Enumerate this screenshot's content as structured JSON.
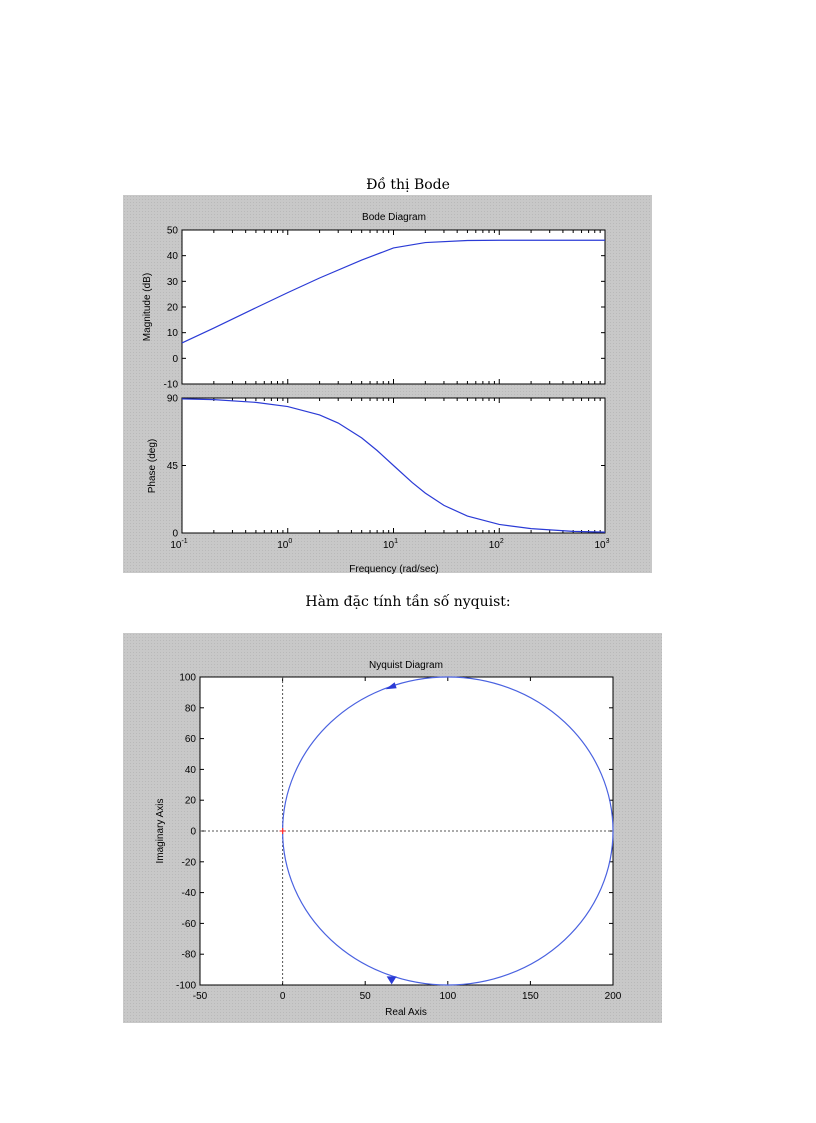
{
  "captions": {
    "bode": "Đồ thị Bode",
    "nyquist": "Hàm đặc tính tần số nyquist:"
  },
  "colors": {
    "curve": "#2b3bd6",
    "nyquist_curve": "#4a62e0",
    "origin_marker": "#ff3030",
    "axis": "#000000",
    "grid_dotted": "#555555",
    "figure_bg": "#c8c8c8",
    "plot_bg": "#ffffff"
  },
  "chart_data": [
    {
      "type": "line",
      "title": "Bode Diagram",
      "xlabel": "Frequency  (rad/sec)",
      "xscale": "log",
      "xlim": [
        0.1,
        1000
      ],
      "x_ticks": [
        {
          "base": "10",
          "exp": "-1"
        },
        {
          "base": "10",
          "exp": "0"
        },
        {
          "base": "10",
          "exp": "1"
        },
        {
          "base": "10",
          "exp": "2"
        },
        {
          "base": "10",
          "exp": "3"
        }
      ],
      "x_tick_values": [
        0.1,
        1,
        10,
        100,
        1000
      ],
      "subplots": [
        {
          "ylabel": "Magnitude (dB)",
          "ylim": [
            -10,
            50
          ],
          "y_ticks": [
            "-10",
            "0",
            "10",
            "20",
            "30",
            "40",
            "50"
          ],
          "y_tick_values": [
            -10,
            0,
            10,
            20,
            30,
            40,
            50
          ],
          "x": [
            0.1,
            0.2,
            0.5,
            1,
            2,
            5,
            10,
            20,
            50,
            100,
            300,
            1000
          ],
          "y": [
            6,
            11.8,
            19.7,
            25.6,
            31.3,
            38.3,
            43.0,
            45.1,
            45.9,
            46.0,
            46.0,
            46.0
          ]
        },
        {
          "ylabel": "Phase (deg)",
          "ylim": [
            0,
            90
          ],
          "y_ticks": [
            "0",
            "45",
            "90"
          ],
          "y_tick_values": [
            0,
            45,
            90
          ],
          "x": [
            0.1,
            0.2,
            0.5,
            1,
            2,
            3,
            5,
            7,
            10,
            15,
            20,
            30,
            50,
            100,
            200,
            500,
            1000
          ],
          "y": [
            89.4,
            88.9,
            87.1,
            84.3,
            78.7,
            73.3,
            63.4,
            55.0,
            45.0,
            33.7,
            26.6,
            18.4,
            11.3,
            5.7,
            2.9,
            1.1,
            0.6
          ]
        }
      ],
      "grid": false
    },
    {
      "type": "line",
      "title": "Nyquist Diagram",
      "xlabel": "Real Axis",
      "ylabel": "Imaginary Axis",
      "xlim": [
        -50,
        200
      ],
      "ylim": [
        -100,
        100
      ],
      "x_ticks": [
        "-50",
        "0",
        "50",
        "100",
        "150",
        "200"
      ],
      "x_tick_values": [
        -50,
        0,
        50,
        100,
        150,
        200
      ],
      "y_ticks": [
        "-100",
        "-80",
        "-60",
        "-40",
        "-20",
        "0",
        "20",
        "40",
        "60",
        "80",
        "100"
      ],
      "y_tick_values": [
        -100,
        -80,
        -60,
        -40,
        -20,
        0,
        20,
        40,
        60,
        80,
        100
      ],
      "curve": {
        "shape": "circle",
        "center": [
          100,
          0
        ],
        "radius": 100
      },
      "arrows": [
        {
          "x": 66,
          "y": 94,
          "direction": "down-left"
        },
        {
          "x": 66,
          "y": -97,
          "direction": "down"
        }
      ],
      "origin_marker": {
        "x": 0,
        "y": 0,
        "symbol": "+"
      },
      "grid": false
    }
  ]
}
